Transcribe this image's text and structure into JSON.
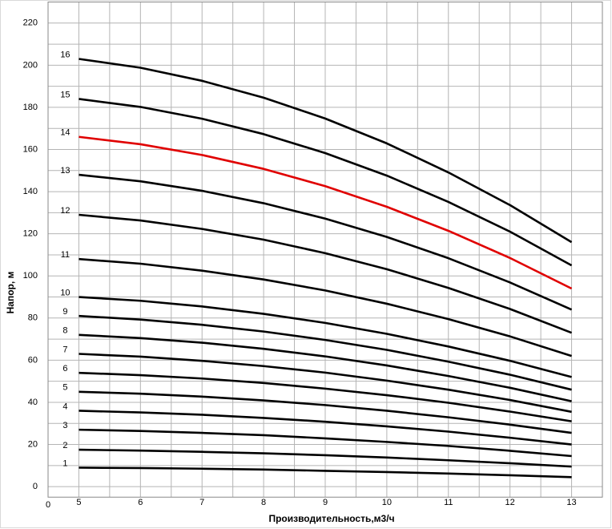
{
  "chart_data": {
    "type": "line",
    "x_label": "Производительность,м3/ч",
    "y_label": "Напор, м",
    "origin_label": "0",
    "x": [
      5,
      6,
      7,
      8,
      9,
      10,
      11,
      12,
      13
    ],
    "xlim": [
      4.5,
      13.5
    ],
    "xticks": [
      5,
      6,
      7,
      8,
      9,
      10,
      11,
      12,
      13
    ],
    "ylim": [
      -5,
      230
    ],
    "yticks": [
      0,
      20,
      40,
      60,
      80,
      100,
      120,
      140,
      160,
      180,
      200,
      220
    ],
    "grid": true,
    "xgrid": [
      4.5,
      5,
      5.5,
      6,
      6.5,
      7,
      7.5,
      8,
      8.5,
      9,
      9.5,
      10,
      10.5,
      11,
      11.5,
      12,
      12.5,
      13,
      13.5
    ],
    "ygrid": [
      0,
      10,
      20,
      30,
      40,
      50,
      60,
      70,
      80,
      90,
      100,
      110,
      120,
      130,
      140,
      150,
      160,
      170,
      180,
      190,
      200,
      210,
      220
    ],
    "series": [
      {
        "name": "1",
        "color": "#000000",
        "values": [
          9,
          8.8,
          8.5,
          8.1,
          7.5,
          6.9,
          6.2,
          5.4,
          4.5
        ]
      },
      {
        "name": "2",
        "color": "#000000",
        "values": [
          17.5,
          17.1,
          16.5,
          15.8,
          14.9,
          13.8,
          12.5,
          11.1,
          9.5
        ]
      },
      {
        "name": "3",
        "color": "#000000",
        "values": [
          27,
          26.4,
          25.5,
          24.4,
          22.9,
          21.2,
          19.3,
          17.0,
          14.5
        ]
      },
      {
        "name": "4",
        "color": "#000000",
        "values": [
          36,
          35.2,
          34.1,
          32.6,
          30.8,
          28.6,
          26.1,
          23.2,
          20
        ]
      },
      {
        "name": "5",
        "color": "#000000",
        "values": [
          45,
          44.1,
          42.7,
          40.9,
          38.7,
          36.0,
          32.9,
          29.4,
          25.5
        ]
      },
      {
        "name": "6",
        "color": "#000000",
        "values": [
          54,
          52.9,
          51.3,
          49.2,
          46.5,
          43.4,
          39.8,
          35.6,
          31
        ]
      },
      {
        "name": "7",
        "color": "#000000",
        "values": [
          63,
          61.7,
          59.7,
          57.2,
          54.1,
          50.3,
          46.0,
          41.1,
          35.5
        ]
      },
      {
        "name": "8",
        "color": "#000000",
        "values": [
          72,
          70.5,
          68.3,
          65.4,
          61.8,
          57.5,
          52.5,
          46.9,
          40.5
        ]
      },
      {
        "name": "9",
        "color": "#000000",
        "values": [
          81,
          79.3,
          76.8,
          73.6,
          69.6,
          64.9,
          59.3,
          53.1,
          46
        ]
      },
      {
        "name": "10",
        "color": "#000000",
        "values": [
          90,
          88.2,
          85.5,
          82.0,
          77.7,
          72.5,
          66.5,
          59.7,
          52
        ]
      },
      {
        "name": "11",
        "color": "#000000",
        "values": [
          108,
          105.8,
          102.5,
          98.3,
          93.1,
          86.8,
          79.5,
          71.3,
          62
        ]
      },
      {
        "name": "12",
        "color": "#000000",
        "values": [
          129,
          126.3,
          122.3,
          117.2,
          110.8,
          103.2,
          94.3,
          84.3,
          73
        ]
      },
      {
        "name": "13",
        "color": "#000000",
        "values": [
          148,
          144.9,
          140.4,
          134.5,
          127.2,
          118.5,
          108.4,
          96.9,
          84
        ]
      },
      {
        "name": "14",
        "color": "#e00000",
        "values": [
          166,
          162.5,
          157.4,
          150.8,
          142.6,
          132.8,
          121.4,
          108.5,
          94
        ]
      },
      {
        "name": "15",
        "color": "#000000",
        "values": [
          184,
          180.2,
          174.6,
          167.3,
          158.3,
          147.6,
          135.1,
          121.0,
          105
        ]
      },
      {
        "name": "16",
        "color": "#000000",
        "values": [
          203,
          198.8,
          192.6,
          184.6,
          174.7,
          162.9,
          149.1,
          133.6,
          116
        ]
      }
    ]
  }
}
